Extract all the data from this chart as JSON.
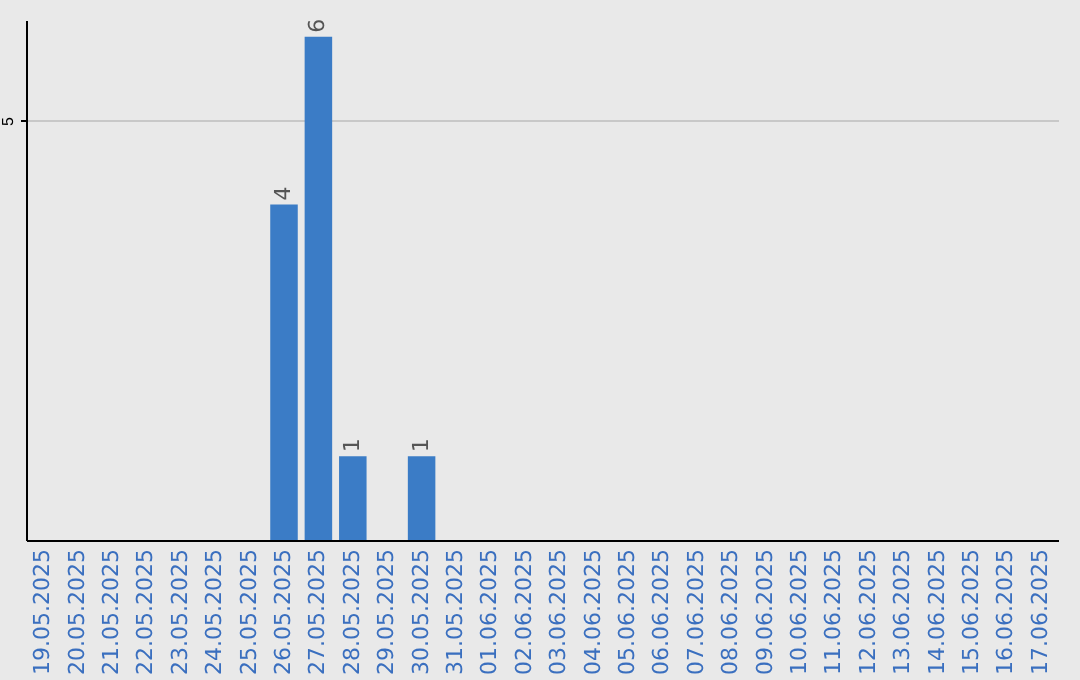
{
  "chart_data": {
    "type": "bar",
    "categories": [
      "19.05.2025",
      "20.05.2025",
      "21.05.2025",
      "22.05.2025",
      "23.05.2025",
      "24.05.2025",
      "25.05.2025",
      "26.05.2025",
      "27.05.2025",
      "28.05.2025",
      "29.05.2025",
      "30.05.2025",
      "31.05.2025",
      "01.06.2025",
      "02.06.2025",
      "03.06.2025",
      "04.06.2025",
      "05.06.2025",
      "06.06.2025",
      "07.06.2025",
      "08.06.2025",
      "09.06.2025",
      "10.06.2025",
      "11.06.2025",
      "12.06.2025",
      "13.06.2025",
      "14.06.2025",
      "15.06.2025",
      "16.06.2025",
      "17.06.2025"
    ],
    "values": [
      null,
      null,
      null,
      null,
      null,
      null,
      null,
      4,
      6,
      1,
      null,
      1,
      null,
      null,
      null,
      null,
      null,
      null,
      null,
      null,
      null,
      null,
      null,
      null,
      null,
      null,
      null,
      null,
      null,
      null
    ],
    "color": "#3b7cc6",
    "ylim": [
      0,
      6.2
    ],
    "yticks": [
      5
    ],
    "grid": true,
    "data_labels": true
  }
}
